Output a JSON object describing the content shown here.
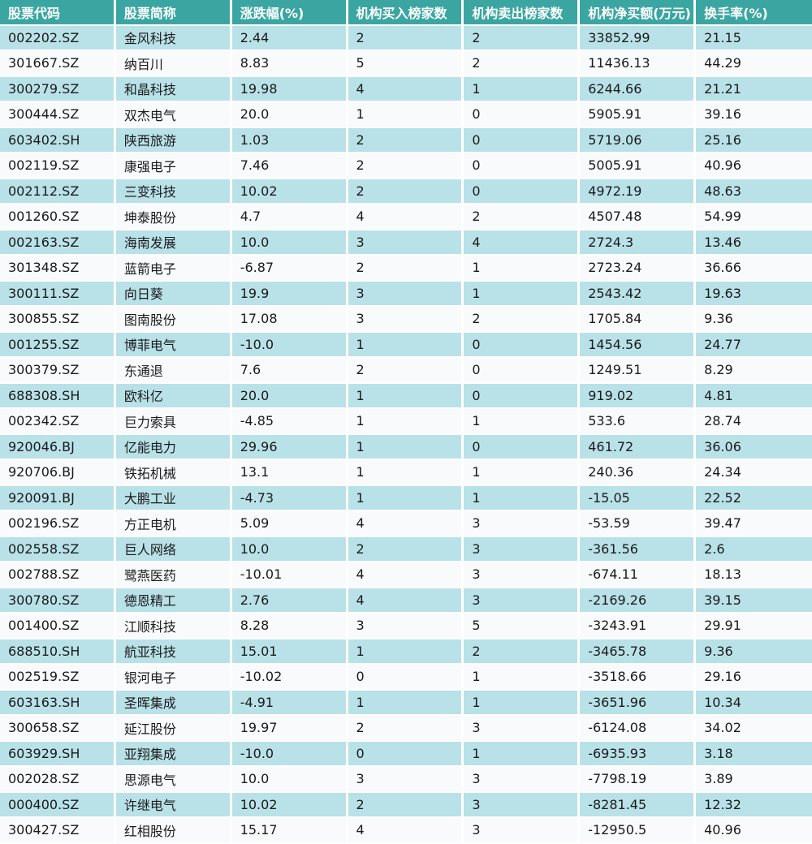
{
  "chart_data": {
    "type": "table",
    "columns": [
      "股票代码",
      "股票简称",
      "涨跌幅(%)",
      "机构买入榜家数",
      "机构卖出榜家数",
      "机构净买额(万元)",
      "换手率(%)"
    ],
    "rows": [
      [
        "002202.SZ",
        "金风科技",
        "2.44",
        "2",
        "2",
        "33852.99",
        "21.15"
      ],
      [
        "301667.SZ",
        "纳百川",
        "8.83",
        "5",
        "2",
        "11436.13",
        "44.29"
      ],
      [
        "300279.SZ",
        "和晶科技",
        "19.98",
        "4",
        "1",
        "6244.66",
        "21.21"
      ],
      [
        "300444.SZ",
        "双杰电气",
        "20.0",
        "1",
        "0",
        "5905.91",
        "39.16"
      ],
      [
        "603402.SH",
        "陕西旅游",
        "1.03",
        "2",
        "0",
        "5719.06",
        "25.16"
      ],
      [
        "002119.SZ",
        "康强电子",
        "7.46",
        "2",
        "0",
        "5005.91",
        "40.96"
      ],
      [
        "002112.SZ",
        "三变科技",
        "10.02",
        "2",
        "0",
        "4972.19",
        "48.63"
      ],
      [
        "001260.SZ",
        "坤泰股份",
        "4.7",
        "4",
        "2",
        "4507.48",
        "54.99"
      ],
      [
        "002163.SZ",
        "海南发展",
        "10.0",
        "3",
        "4",
        "2724.3",
        "13.46"
      ],
      [
        "301348.SZ",
        "蓝箭电子",
        "-6.87",
        "2",
        "1",
        "2723.24",
        "36.66"
      ],
      [
        "300111.SZ",
        "向日葵",
        "19.9",
        "3",
        "1",
        "2543.42",
        "19.63"
      ],
      [
        "300855.SZ",
        "图南股份",
        "17.08",
        "3",
        "2",
        "1705.84",
        "9.36"
      ],
      [
        "001255.SZ",
        "博菲电气",
        "-10.0",
        "1",
        "0",
        "1454.56",
        "24.77"
      ],
      [
        "300379.SZ",
        "东通退",
        "7.6",
        "2",
        "0",
        "1249.51",
        "8.29"
      ],
      [
        "688308.SH",
        "欧科亿",
        "20.0",
        "1",
        "0",
        "919.02",
        "4.81"
      ],
      [
        "002342.SZ",
        "巨力索具",
        "-4.85",
        "1",
        "1",
        "533.6",
        "28.74"
      ],
      [
        "920046.BJ",
        "亿能电力",
        "29.96",
        "1",
        "0",
        "461.72",
        "36.06"
      ],
      [
        "920706.BJ",
        "铁拓机械",
        "13.1",
        "1",
        "1",
        "240.36",
        "24.34"
      ],
      [
        "920091.BJ",
        "大鹏工业",
        "-4.73",
        "1",
        "1",
        "-15.05",
        "22.52"
      ],
      [
        "002196.SZ",
        "方正电机",
        "5.09",
        "4",
        "3",
        "-53.59",
        "39.47"
      ],
      [
        "002558.SZ",
        "巨人网络",
        "10.0",
        "2",
        "3",
        "-361.56",
        "2.6"
      ],
      [
        "002788.SZ",
        "鹭燕医药",
        "-10.01",
        "4",
        "3",
        "-674.11",
        "18.13"
      ],
      [
        "300780.SZ",
        "德恩精工",
        "2.76",
        "4",
        "3",
        "-2169.26",
        "39.15"
      ],
      [
        "001400.SZ",
        "江顺科技",
        "8.28",
        "3",
        "5",
        "-3243.91",
        "29.91"
      ],
      [
        "688510.SH",
        "航亚科技",
        "15.01",
        "1",
        "2",
        "-3465.78",
        "9.36"
      ],
      [
        "002519.SZ",
        "银河电子",
        "-10.02",
        "0",
        "1",
        "-3518.66",
        "29.16"
      ],
      [
        "603163.SH",
        "圣晖集成",
        "-4.91",
        "1",
        "1",
        "-3651.96",
        "10.34"
      ],
      [
        "300658.SZ",
        "延江股份",
        "19.97",
        "2",
        "3",
        "-6124.08",
        "34.02"
      ],
      [
        "603929.SH",
        "亚翔集成",
        "-10.0",
        "0",
        "1",
        "-6935.93",
        "3.18"
      ],
      [
        "002028.SZ",
        "思源电气",
        "10.0",
        "3",
        "3",
        "-7798.19",
        "3.89"
      ],
      [
        "000400.SZ",
        "许继电气",
        "10.02",
        "2",
        "3",
        "-8281.45",
        "12.32"
      ],
      [
        "300427.SZ",
        "红相股份",
        "15.17",
        "4",
        "3",
        "-12950.5",
        "40.96"
      ]
    ]
  },
  "colors": {
    "header_bg": "#3BA6A1",
    "header_text": "#FFFFFF",
    "row_odd_bg": "#B9E1E8",
    "row_even_bg": "#F8FAFB",
    "cell_text": "#1A1A1A",
    "separator": "#FFFFFF"
  }
}
